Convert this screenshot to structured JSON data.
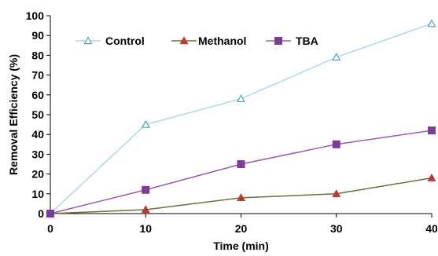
{
  "chart_data": {
    "type": "line",
    "title": "",
    "xlabel": "Time (min)",
    "ylabel": "Removal Efficiency (%)",
    "x": [
      0,
      10,
      20,
      30,
      40
    ],
    "xlim": [
      0,
      40
    ],
    "ylim": [
      0,
      100
    ],
    "x_ticks": [
      0,
      10,
      20,
      30,
      40
    ],
    "y_ticks": [
      0,
      10,
      20,
      30,
      40,
      50,
      60,
      70,
      80,
      90,
      100
    ],
    "grid": false,
    "legend_position": "top",
    "series": [
      {
        "name": "Control",
        "values": [
          0,
          45,
          58,
          79,
          96
        ],
        "color": "#a8d8ea",
        "marker": "open-triangle",
        "marker_color": "#4aa3c8"
      },
      {
        "name": "Methanol",
        "values": [
          0,
          2,
          8,
          10,
          18
        ],
        "color": "#6b6e3a",
        "marker": "filled-triangle",
        "marker_color": "#c0392b"
      },
      {
        "name": "TBA",
        "values": [
          0,
          12,
          25,
          35,
          42
        ],
        "color": "#9b59b6",
        "marker": "filled-square",
        "marker_color": "#7d3c98"
      }
    ]
  }
}
